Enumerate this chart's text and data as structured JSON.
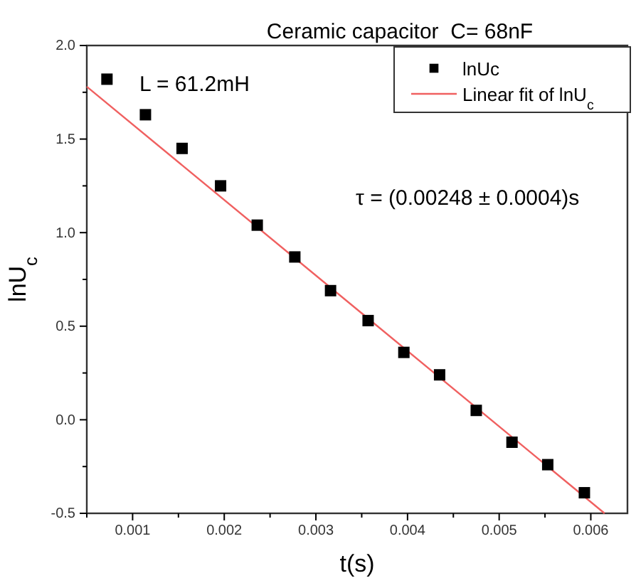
{
  "chart_data": {
    "type": "scatter",
    "title": "Ceramic capacitor  C= 68nF",
    "xlabel": "t(s)",
    "ylabel": "lnU$_{c}$",
    "xlim": [
      0.0005,
      0.0064
    ],
    "xticks": [
      {
        "value": 0.0005,
        "label": null
      },
      0.001,
      {
        "value": 0.0015,
        "label": null
      },
      0.002,
      {
        "value": 0.0025,
        "label": null
      },
      0.003,
      {
        "value": 0.0035,
        "label": null
      },
      0.004,
      {
        "value": 0.0045,
        "label": null
      },
      0.005,
      {
        "value": 0.0055,
        "label": null
      },
      0.006
    ],
    "ylim": [
      -0.5,
      2.0
    ],
    "yticks": [
      {
        "value": -0.5,
        "label": "-0.5"
      },
      {
        "value": -0.25,
        "label": null
      },
      {
        "value": 0,
        "label": "0.0"
      },
      {
        "value": 0.25,
        "label": null
      },
      {
        "value": 0.5,
        "label": "0.5"
      },
      {
        "value": 0.75,
        "label": null
      },
      {
        "value": 1,
        "label": "1.0"
      },
      {
        "value": 1.25,
        "label": null
      },
      {
        "value": 1.5,
        "label": "1.5"
      },
      {
        "value": 1.75,
        "label": null
      },
      {
        "value": 2,
        "label": "2.0"
      }
    ],
    "series": [
      {
        "name": "lnUc",
        "color": "#000000",
        "marker": "square",
        "x": [
          0.00072,
          0.00114,
          0.00154,
          0.00196,
          0.00236,
          0.00277,
          0.00316,
          0.00357,
          0.00396,
          0.00435,
          0.00475,
          0.00514,
          0.00553,
          0.00593
        ],
        "values": [
          1.82,
          1.63,
          1.45,
          1.25,
          1.04,
          0.87,
          0.69,
          0.53,
          0.36,
          0.24,
          0.05,
          -0.12,
          -0.24,
          -0.39
        ]
      },
      {
        "name": "Linear fit of lnU$_{c}$",
        "type": "line",
        "color": "#f06060",
        "line_style": "solid",
        "x": [
          0.0005,
          0.00615
        ],
        "values": [
          1.78,
          -0.5
        ]
      }
    ],
    "legend": "top right",
    "grid": false,
    "annotations": [
      "L = 61.2mH",
      "τ = (0.00248 ± 0.0004)s"
    ]
  }
}
